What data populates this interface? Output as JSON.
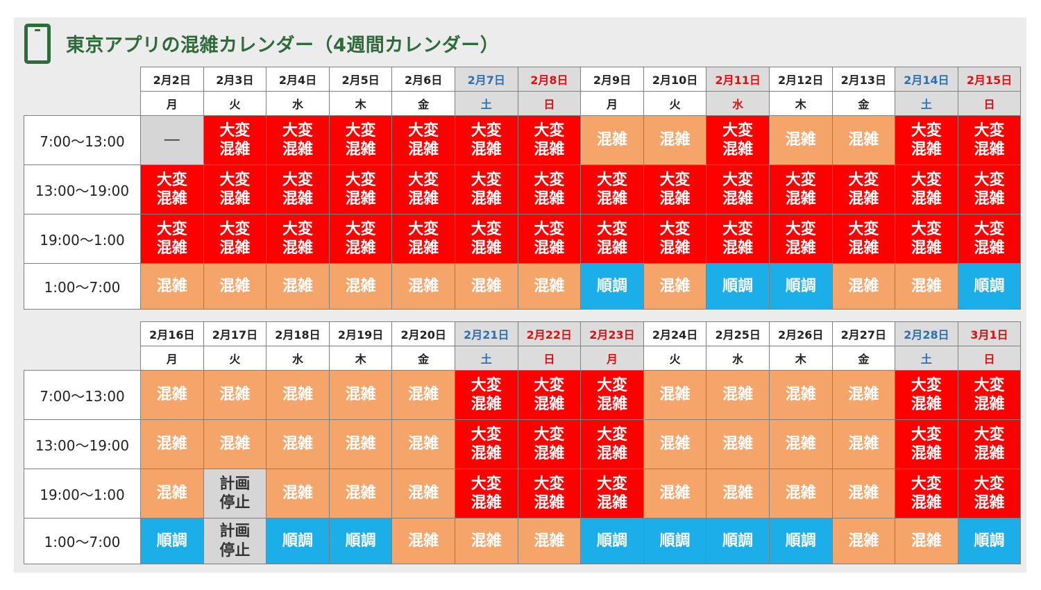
{
  "header": {
    "title": "東京アプリの混雑カレンダー（4週間カレンダー）",
    "icon": "smartphone-icon"
  },
  "status_labels": {
    "very": "大変\n混雑",
    "busy": "混雑",
    "smooth": "順調",
    "stop": "計画\n停止",
    "none": "―"
  },
  "colors": {
    "very": "#fe0000",
    "busy": "#f5a46a",
    "smooth": "#1caee9",
    "stop": "#d6d6d6",
    "accent": "#2e6b3a"
  },
  "time_slots": [
    "7:00～13:00",
    "13:00～19:00",
    "19:00～1:00",
    "1:00～7:00"
  ],
  "weeks": [
    {
      "dates": [
        "2月2日",
        "2月3日",
        "2月4日",
        "2月5日",
        "2月6日",
        "2月7日",
        "2月8日",
        "2月9日",
        "2月10日",
        "2月11日",
        "2月12日",
        "2月13日",
        "2月14日",
        "2月15日"
      ],
      "dows": [
        "月",
        "火",
        "水",
        "木",
        "金",
        "土",
        "日",
        "月",
        "火",
        "水",
        "木",
        "金",
        "土",
        "日"
      ],
      "day_types": [
        "w",
        "w",
        "w",
        "w",
        "w",
        "sat",
        "sun",
        "w",
        "w",
        "hol",
        "w",
        "w",
        "sat",
        "sun"
      ],
      "rows": [
        [
          "none",
          "very",
          "very",
          "very",
          "very",
          "very",
          "very",
          "busy",
          "busy",
          "very",
          "busy",
          "busy",
          "very",
          "very"
        ],
        [
          "very",
          "very",
          "very",
          "very",
          "very",
          "very",
          "very",
          "very",
          "very",
          "very",
          "very",
          "very",
          "very",
          "very"
        ],
        [
          "very",
          "very",
          "very",
          "very",
          "very",
          "very",
          "very",
          "very",
          "very",
          "very",
          "very",
          "very",
          "very",
          "very"
        ],
        [
          "busy",
          "busy",
          "busy",
          "busy",
          "busy",
          "busy",
          "busy",
          "smooth",
          "busy",
          "smooth",
          "smooth",
          "busy",
          "busy",
          "smooth"
        ]
      ]
    },
    {
      "dates": [
        "2月16日",
        "2月17日",
        "2月18日",
        "2月19日",
        "2月20日",
        "2月21日",
        "2月22日",
        "2月23日",
        "2月24日",
        "2月25日",
        "2月26日",
        "2月27日",
        "2月28日",
        "3月1日"
      ],
      "dows": [
        "月",
        "火",
        "水",
        "木",
        "金",
        "土",
        "日",
        "月",
        "火",
        "水",
        "木",
        "金",
        "土",
        "日"
      ],
      "day_types": [
        "w",
        "w",
        "w",
        "w",
        "w",
        "sat",
        "sun",
        "hol",
        "w",
        "w",
        "w",
        "w",
        "sat",
        "sun"
      ],
      "rows": [
        [
          "busy",
          "busy",
          "busy",
          "busy",
          "busy",
          "very",
          "very",
          "very",
          "busy",
          "busy",
          "busy",
          "busy",
          "very",
          "very"
        ],
        [
          "busy",
          "busy",
          "busy",
          "busy",
          "busy",
          "very",
          "very",
          "very",
          "busy",
          "busy",
          "busy",
          "busy",
          "very",
          "very"
        ],
        [
          "busy",
          "stop",
          "busy",
          "busy",
          "busy",
          "very",
          "very",
          "very",
          "busy",
          "busy",
          "busy",
          "busy",
          "very",
          "very"
        ],
        [
          "smooth",
          "stop",
          "smooth",
          "smooth",
          "busy",
          "busy",
          "busy",
          "smooth",
          "smooth",
          "smooth",
          "smooth",
          "busy",
          "busy",
          "smooth"
        ]
      ]
    }
  ]
}
